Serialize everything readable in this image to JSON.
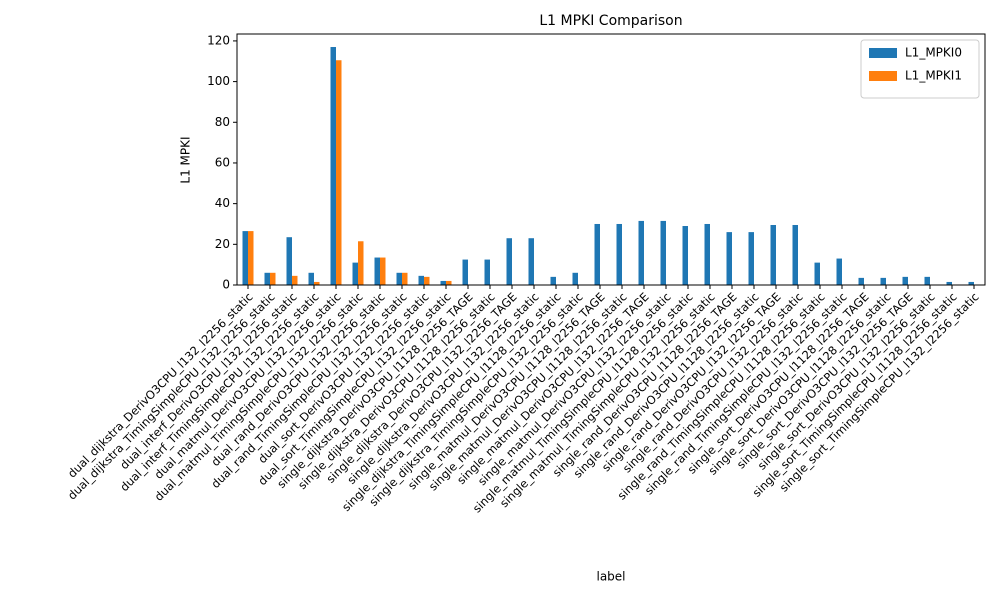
{
  "chart_data": {
    "type": "bar",
    "title": "L1 MPKI Comparison",
    "x_label": "label",
    "y_label": "L1 MPKI",
    "categories": [
      "dual_dijkstra_DerivO3CPU_l132_l2256_static",
      "dual_dijkstra_TimingSimpleCPU_l132_l2256_static",
      "dual_interf_DerivO3CPU_l132_l2256_static",
      "dual_interf_TimingSimpleCPU_l132_l2256_static",
      "dual_matmul_DerivO3CPU_l132_l2256_static",
      "dual_matmul_TimingSimpleCPU_l132_l2256_static",
      "dual_rand_DerivO3CPU_l132_l2256_static",
      "dual_rand_TimingSimpleCPU_l132_l2256_static",
      "dual_sort_DerivO3CPU_l132_l2256_static",
      "dual_sort_TimingSimpleCPU_l132_l2256_static",
      "single_dijkstra_DerivO3CPU_l1128_l2256_TAGE",
      "single_dijkstra_DerivO3CPU_l1128_l2256_static",
      "single_dijkstra_DerivO3CPU_l132_l2256_TAGE",
      "single_dijkstra_DerivO3CPU_l132_l2256_static",
      "single_dijkstra_TimingSimpleCPU_l1128_l2256_static",
      "single_dijkstra_TimingSimpleCPU_l132_l2256_static",
      "single_matmul_DerivO3CPU_l1128_l2256_TAGE",
      "single_matmul_DerivO3CPU_l1128_l2256_static",
      "single_matmul_DerivO3CPU_l132_l2256_TAGE",
      "single_matmul_DerivO3CPU_l132_l2256_static",
      "single_matmul_TimingSimpleCPU_l1128_l2256_static",
      "single_matmul_TimingSimpleCPU_l132_l2256_static",
      "single_rand_DerivO3CPU_l1128_l2256_TAGE",
      "single_rand_DerivO3CPU_l1128_l2256_static",
      "single_rand_DerivO3CPU_l132_l2256_TAGE",
      "single_rand_DerivO3CPU_l132_l2256_static",
      "single_rand_TimingSimpleCPU_l1128_l2256_static",
      "single_rand_TimingSimpleCPU_l132_l2256_static",
      "single_sort_DerivO3CPU_l1128_l2256_TAGE",
      "single_sort_DerivO3CPU_l1128_l2256_static",
      "single_sort_DerivO3CPU_l132_l2256_TAGE",
      "single_sort_DerivO3CPU_l132_l2256_static",
      "single_sort_TimingSimpleCPU_l1128_l2256_static",
      "single_sort_TimingSimpleCPU_l132_l2256_static"
    ],
    "series": [
      {
        "name": "L1_MPKI0",
        "color": "#1f77b4",
        "values": [
          26.5,
          6,
          23.5,
          6,
          117,
          11,
          13.5,
          6,
          4.5,
          2,
          12.5,
          12.5,
          23,
          23,
          4,
          6,
          30,
          30,
          31.5,
          31.5,
          29,
          30,
          26,
          26,
          29.5,
          29.5,
          11,
          13,
          3.5,
          3.5,
          4,
          4,
          1.5,
          1.5
        ]
      },
      {
        "name": "L1_MPKI1",
        "color": "#ff7f0e",
        "values": [
          26.5,
          6,
          4.5,
          1.5,
          110.5,
          21.5,
          13.5,
          6,
          4,
          2,
          null,
          null,
          null,
          null,
          null,
          null,
          null,
          null,
          null,
          null,
          null,
          null,
          null,
          null,
          null,
          null,
          null,
          null,
          null,
          null,
          null,
          null,
          null,
          null
        ]
      }
    ],
    "ylim": [
      0,
      123.4
    ],
    "yticks": [
      0,
      20,
      40,
      60,
      80,
      100,
      120
    ],
    "legend": "upper right"
  }
}
